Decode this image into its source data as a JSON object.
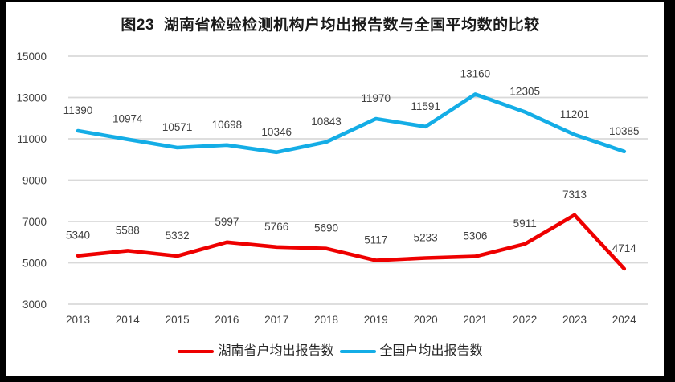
{
  "colors": {
    "hunan_red": "#EE0000",
    "national_blue": "#14ADE6",
    "gridline": "#D9D9D9",
    "axis_text": "#404040",
    "data_label_text": "#404040",
    "title_text": "#1A1A1A",
    "legend_text": "#262626",
    "frame": "#000000",
    "background": "#FFFFFF"
  },
  "chart_data": {
    "type": "line",
    "title": "图23  湖南省检验检测机构户均出报告数与全国平均数的比较",
    "categories": [
      "2013",
      "2014",
      "2015",
      "2016",
      "2017",
      "2018",
      "2019",
      "2020",
      "2021",
      "2022",
      "2023",
      "2024"
    ],
    "series": [
      {
        "name": "湖南省户均出报告数",
        "color_key": "hunan_red",
        "values": [
          5340,
          5588,
          5332,
          5997,
          5766,
          5690,
          5117,
          5233,
          5306,
          5911,
          7313,
          4714
        ]
      },
      {
        "name": "全国户均出报告数",
        "color_key": "national_blue",
        "values": [
          11390,
          10974,
          10571,
          10698,
          10346,
          10843,
          11970,
          11591,
          13160,
          12305,
          11201,
          10385
        ]
      }
    ],
    "xlabel": "",
    "ylabel": "",
    "ylim": [
      3000,
      15000
    ],
    "yticks": [
      3000,
      5000,
      7000,
      9000,
      11000,
      13000,
      15000
    ],
    "grid": true,
    "data_labels": true,
    "legend_position": "bottom"
  }
}
